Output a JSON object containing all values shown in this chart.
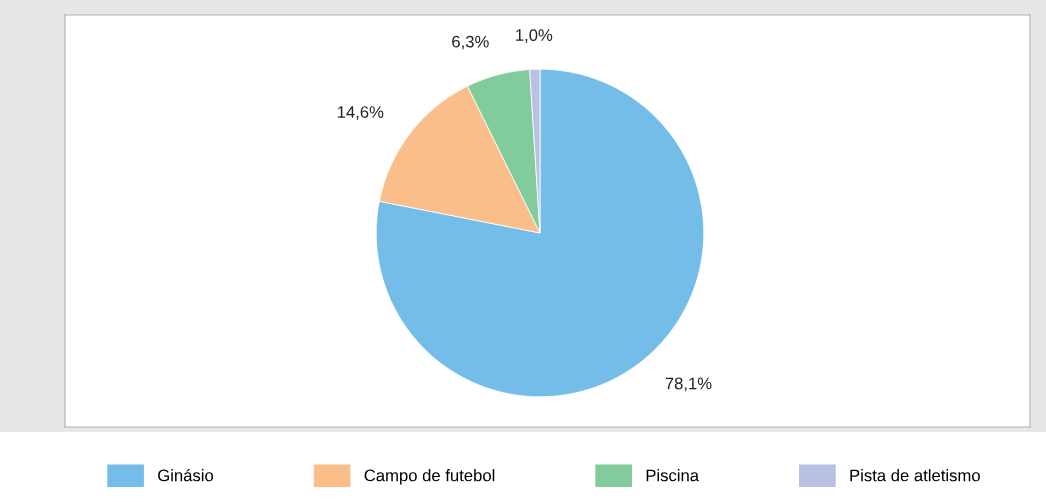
{
  "chart_data": {
    "type": "pie",
    "categories": [
      "Ginásio",
      "Campo de futebol",
      "Piscina",
      "Pista de atletismo"
    ],
    "values": [
      78.1,
      14.6,
      6.3,
      1.0
    ],
    "colors": [
      "#74bde8",
      "#f9be8a",
      "#82cc9c",
      "#b8c0e4"
    ],
    "value_labels": [
      "78,1%",
      "14,6%",
      "6,3%",
      "1,0%"
    ],
    "legend": "bottom"
  }
}
